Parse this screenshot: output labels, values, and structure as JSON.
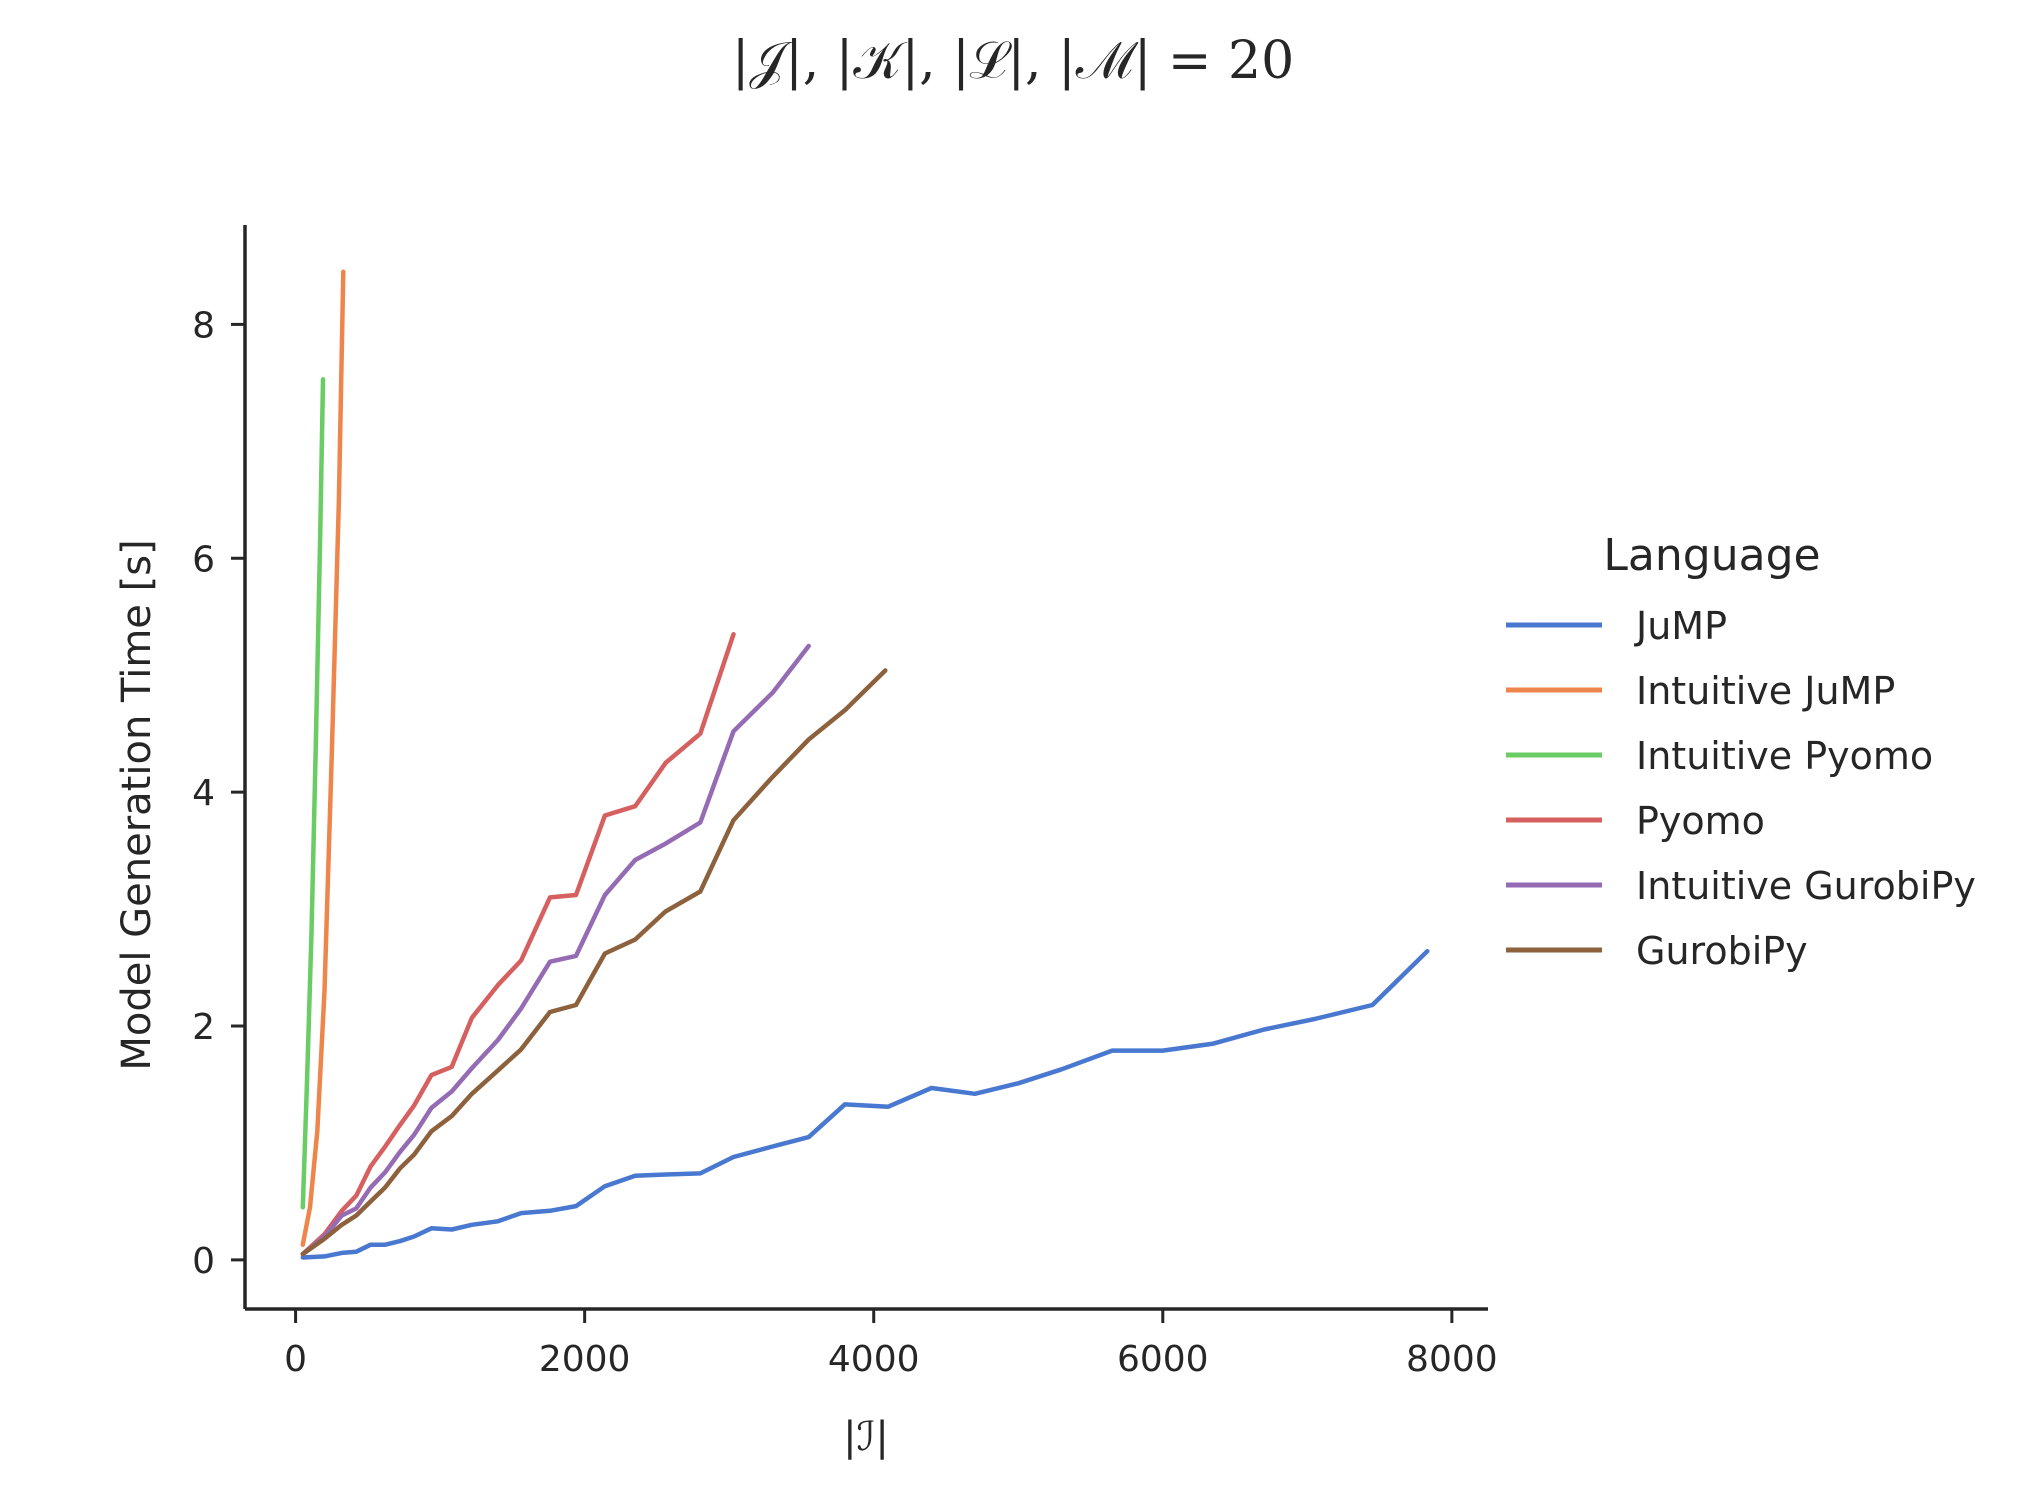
{
  "chart_data": {
    "type": "line",
    "title": "|𝒥|, |𝒦|, |ℒ|, |ℳ| = 20",
    "xlabel": "|ℐ|",
    "ylabel": "Model Generation Time [s]",
    "xlim": [
      -350,
      8250
    ],
    "ylim": [
      -0.42,
      8.85
    ],
    "xticks": [
      0,
      2000,
      4000,
      6000,
      8000
    ],
    "yticks": [
      0,
      2,
      4,
      6,
      8
    ],
    "grid": false,
    "legend": {
      "title": "Language",
      "placement": "right"
    },
    "series": [
      {
        "name": "JuMP",
        "color": "#4878d0",
        "x": [
          50,
          200,
          320,
          420,
          520,
          620,
          720,
          820,
          940,
          1080,
          1220,
          1400,
          1560,
          1760,
          1940,
          2140,
          2350,
          2560,
          2800,
          3030,
          3300,
          3550,
          3800,
          4100,
          4400,
          4700,
          5000,
          5300,
          5650,
          6000,
          6350,
          6700,
          7050,
          7450,
          7830
        ],
        "y": [
          0.02,
          0.03,
          0.06,
          0.07,
          0.13,
          0.13,
          0.16,
          0.2,
          0.27,
          0.26,
          0.3,
          0.33,
          0.4,
          0.42,
          0.46,
          0.63,
          0.72,
          0.73,
          0.74,
          0.88,
          0.97,
          1.05,
          1.33,
          1.31,
          1.47,
          1.42,
          1.51,
          1.63,
          1.79,
          1.79,
          1.85,
          1.97,
          2.06,
          2.18,
          2.64
        ]
      },
      {
        "name": "Intuitive JuMP",
        "color": "#ee854a",
        "x": [
          50,
          100,
          150,
          200,
          250,
          300,
          330
        ],
        "y": [
          0.13,
          0.45,
          1.1,
          2.3,
          4.3,
          6.5,
          8.45
        ]
      },
      {
        "name": "Intuitive Pyomo",
        "color": "#6acc64",
        "x": [
          50,
          80,
          110,
          140,
          170,
          190
        ],
        "y": [
          0.45,
          1.55,
          2.8,
          4.4,
          6.2,
          7.53
        ]
      },
      {
        "name": "Pyomo",
        "color": "#d65f5f",
        "x": [
          50,
          200,
          320,
          420,
          520,
          620,
          720,
          820,
          940,
          1080,
          1220,
          1400,
          1560,
          1760,
          1940,
          2140,
          2350,
          2560,
          2800,
          3030
        ],
        "y": [
          0.05,
          0.22,
          0.42,
          0.55,
          0.8,
          0.97,
          1.15,
          1.32,
          1.58,
          1.65,
          2.07,
          2.35,
          2.56,
          3.1,
          3.12,
          3.8,
          3.88,
          4.25,
          4.5,
          5.35
        ]
      },
      {
        "name": "Intuitive GurobiPy",
        "color": "#956cb4",
        "x": [
          50,
          200,
          320,
          420,
          520,
          620,
          720,
          820,
          940,
          1080,
          1220,
          1400,
          1560,
          1760,
          1940,
          2140,
          2350,
          2560,
          2800,
          3030,
          3300,
          3550
        ],
        "y": [
          0.05,
          0.2,
          0.38,
          0.44,
          0.62,
          0.75,
          0.92,
          1.07,
          1.3,
          1.44,
          1.64,
          1.88,
          2.15,
          2.55,
          2.6,
          3.12,
          3.42,
          3.56,
          3.74,
          4.52,
          4.85,
          5.25
        ]
      },
      {
        "name": "GurobiPy",
        "color": "#8c613c",
        "x": [
          50,
          200,
          320,
          420,
          520,
          620,
          720,
          820,
          940,
          1080,
          1220,
          1400,
          1560,
          1760,
          1940,
          2140,
          2350,
          2560,
          2800,
          3030,
          3300,
          3550,
          3800,
          4080
        ],
        "y": [
          0.05,
          0.18,
          0.3,
          0.38,
          0.5,
          0.62,
          0.78,
          0.9,
          1.1,
          1.23,
          1.42,
          1.62,
          1.8,
          2.12,
          2.18,
          2.62,
          2.74,
          2.98,
          3.15,
          3.76,
          4.13,
          4.45,
          4.7,
          5.04
        ]
      }
    ]
  }
}
